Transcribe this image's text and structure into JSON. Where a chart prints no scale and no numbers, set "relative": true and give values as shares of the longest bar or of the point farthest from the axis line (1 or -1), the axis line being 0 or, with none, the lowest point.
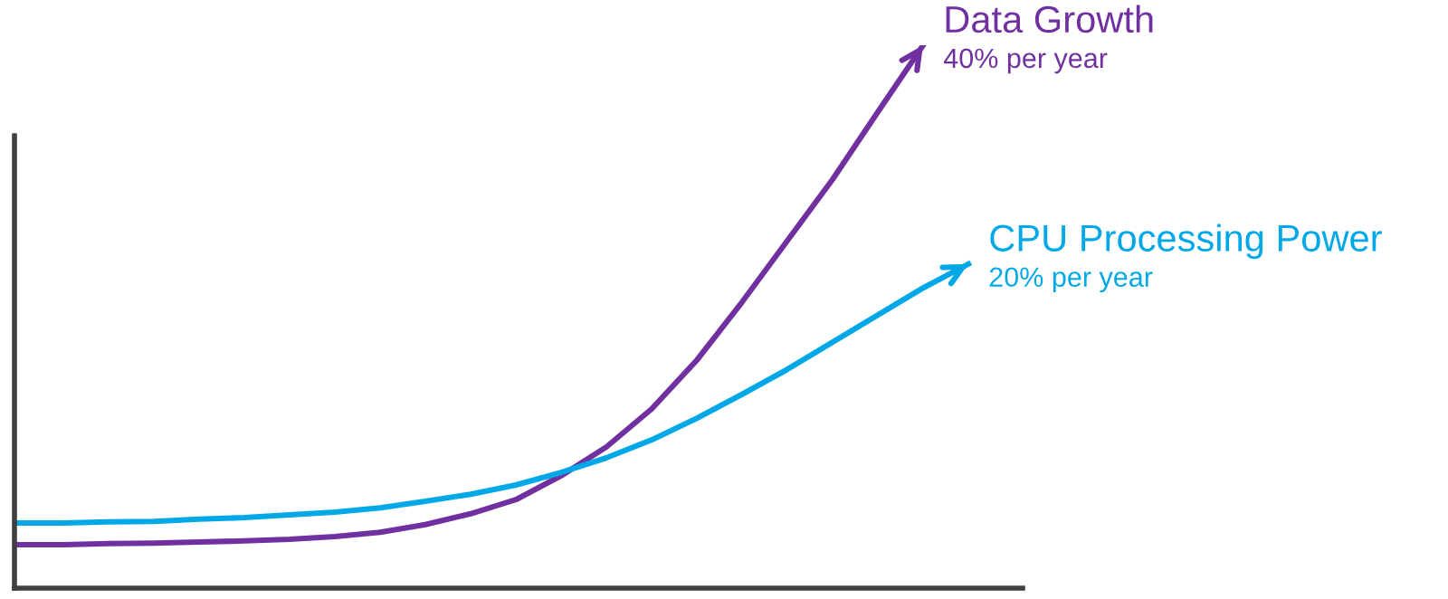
{
  "chart_data": {
    "type": "line",
    "relative": true,
    "categories": [
      null,
      null,
      null,
      null,
      null,
      null,
      null,
      null,
      null,
      null,
      null,
      null,
      null,
      null,
      null,
      null,
      null,
      null,
      null,
      null,
      null,
      null
    ],
    "series": [
      {
        "name": "Data Growth",
        "color": "#7030a0",
        "values": [
          0.08,
          0.08,
          0.082,
          0.083,
          0.085,
          0.087,
          0.09,
          0.095,
          0.103,
          0.117,
          0.137,
          0.163,
          0.207,
          0.26,
          0.33,
          0.42,
          0.527,
          0.64,
          0.753,
          0.877,
          1.0,
          null
        ]
      },
      {
        "name": "CPU Processing Power",
        "color": "#00a8e8",
        "values": [
          0.12,
          0.12,
          0.122,
          0.123,
          0.127,
          0.13,
          0.135,
          0.14,
          0.148,
          0.16,
          0.173,
          0.19,
          0.213,
          0.24,
          0.273,
          0.313,
          0.357,
          0.403,
          0.453,
          0.503,
          0.553,
          0.597
        ]
      }
    ],
    "annotations": [
      "40% per year",
      "20% per year"
    ],
    "grid": false,
    "legend": false,
    "marker": "none",
    "line_style": "solid"
  }
}
